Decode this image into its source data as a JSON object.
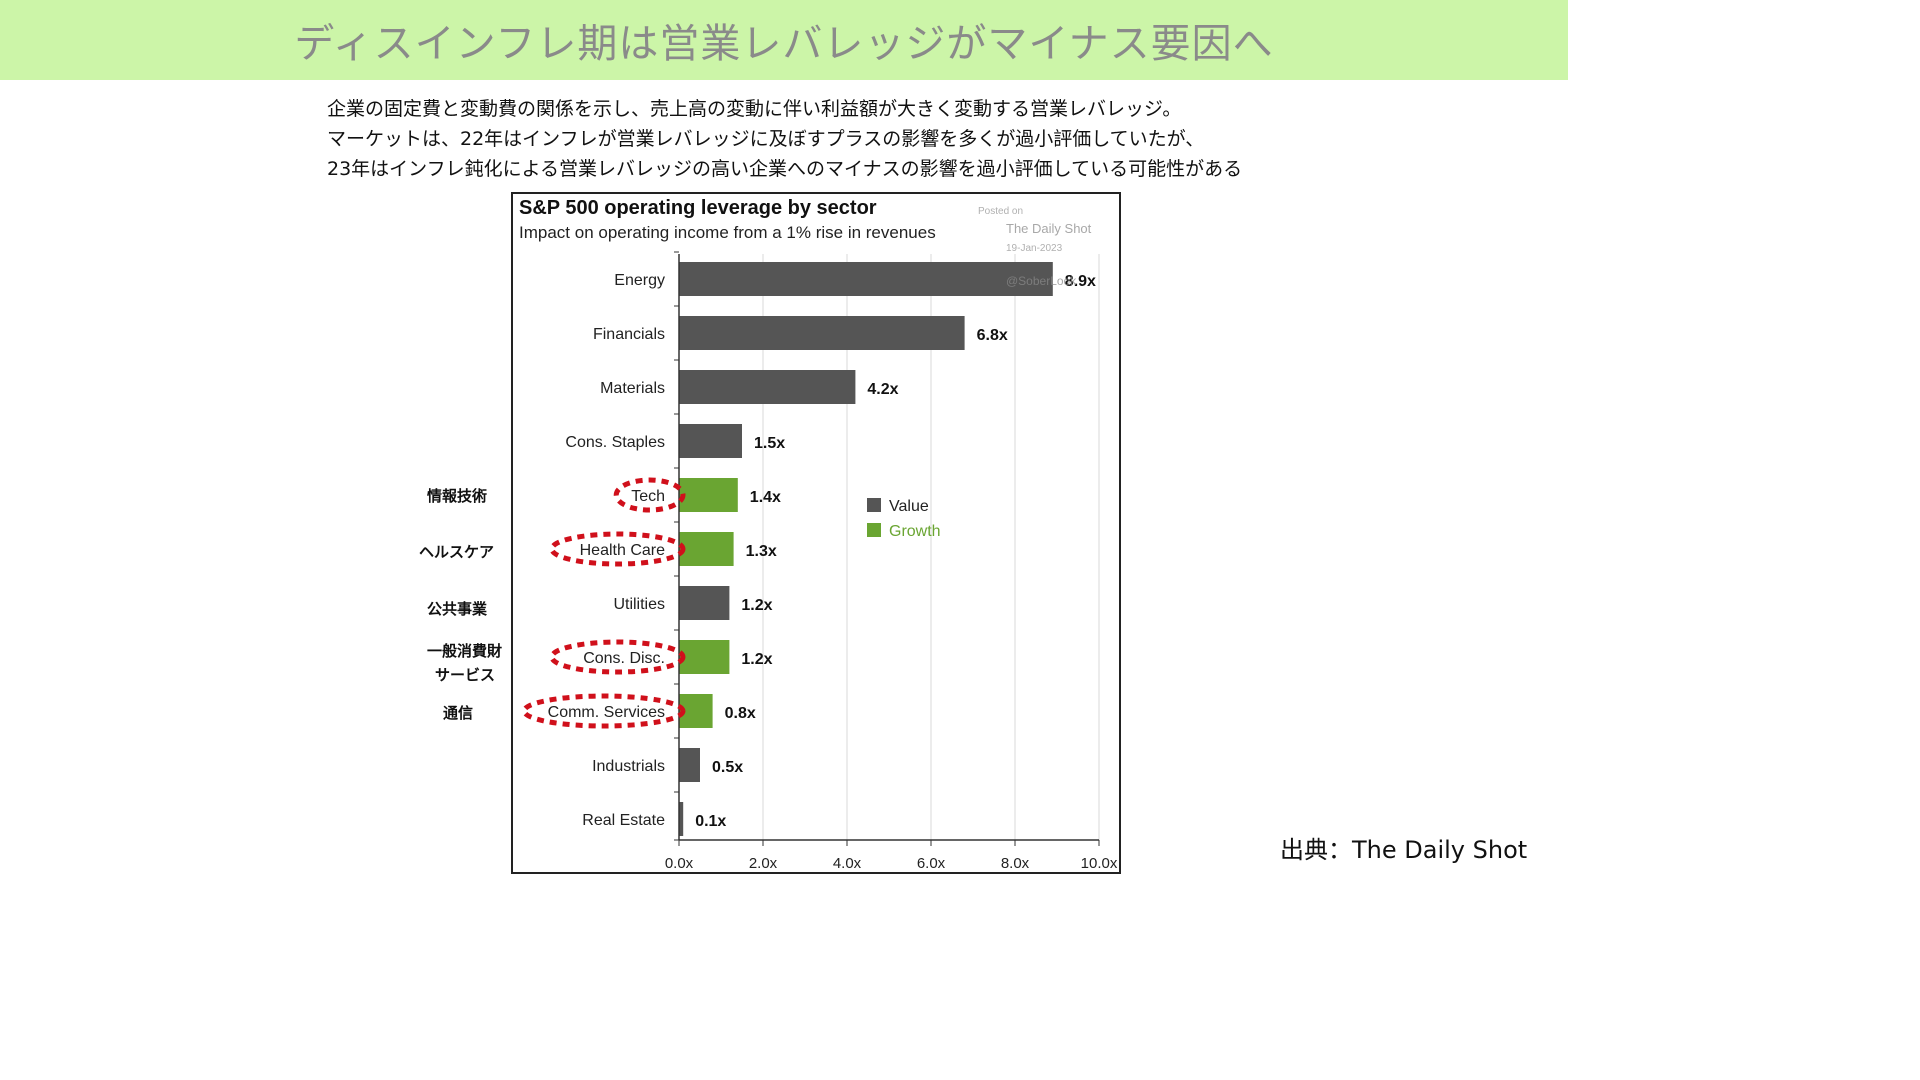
{
  "slide": {
    "title": "ディスインフレ期は営業レバレッジがマイナス要因へ",
    "description_lines": [
      "企業の固定費と変動費の関係を示し、売上高の変動に伴い利益額が大きく変動する営業レバレッジ。",
      "マーケットは、22年はインフレが営業レバレッジに及ぼすプラスの影響を多くが過小評価していたが、",
      "23年はインフレ鈍化による営業レバレッジの高い企業へのマイナスの影響を過小評価している可能性がある"
    ],
    "source": "出典：The Daily Shot",
    "jp_labels": {
      "tech": "情報技術",
      "health": "ヘルスケア",
      "utilities": "公共事業",
      "cons_disc_1": "一般消費財",
      "cons_disc_2": "サービス",
      "comm": "通信"
    }
  },
  "colors": {
    "banner": "#ccf5a8",
    "value": "#555555",
    "growth": "#6aa532",
    "highlight": "#d0101b"
  },
  "chart_data": {
    "type": "bar",
    "orientation": "horizontal",
    "title": "S&P 500 operating leverage by sector",
    "subtitle": "Impact on operating income from a 1% rise in revenues",
    "watermark": {
      "posted": "Posted on",
      "publisher": "The Daily Shot",
      "date": "19-Jan-2023",
      "handle": "@SoberLook"
    },
    "categories": [
      "Energy",
      "Financials",
      "Materials",
      "Cons. Staples",
      "Tech",
      "Health Care",
      "Utilities",
      "Cons. Disc.",
      "Comm. Services",
      "Industrials",
      "Real Estate"
    ],
    "values": [
      8.9,
      6.8,
      4.2,
      1.5,
      1.4,
      1.3,
      1.2,
      1.2,
      0.8,
      0.5,
      0.1
    ],
    "value_labels": [
      "8.9x",
      "6.8x",
      "4.2x",
      "1.5x",
      "1.4x",
      "1.3x",
      "1.2x",
      "1.2x",
      "0.8x",
      "0.5x",
      "0.1x"
    ],
    "groups": [
      "Value",
      "Value",
      "Value",
      "Value",
      "Growth",
      "Growth",
      "Value",
      "Growth",
      "Growth",
      "Value",
      "Value"
    ],
    "highlighted": [
      "Tech",
      "Health Care",
      "Cons. Disc.",
      "Comm. Services"
    ],
    "legend": [
      "Value",
      "Growth"
    ],
    "xlim": [
      0,
      10
    ],
    "xticks": [
      0,
      2,
      4,
      6,
      8,
      10
    ],
    "xtick_labels": [
      "0.0x",
      "2.0x",
      "4.0x",
      "6.0x",
      "8.0x",
      "10.0x"
    ],
    "grid": true
  }
}
